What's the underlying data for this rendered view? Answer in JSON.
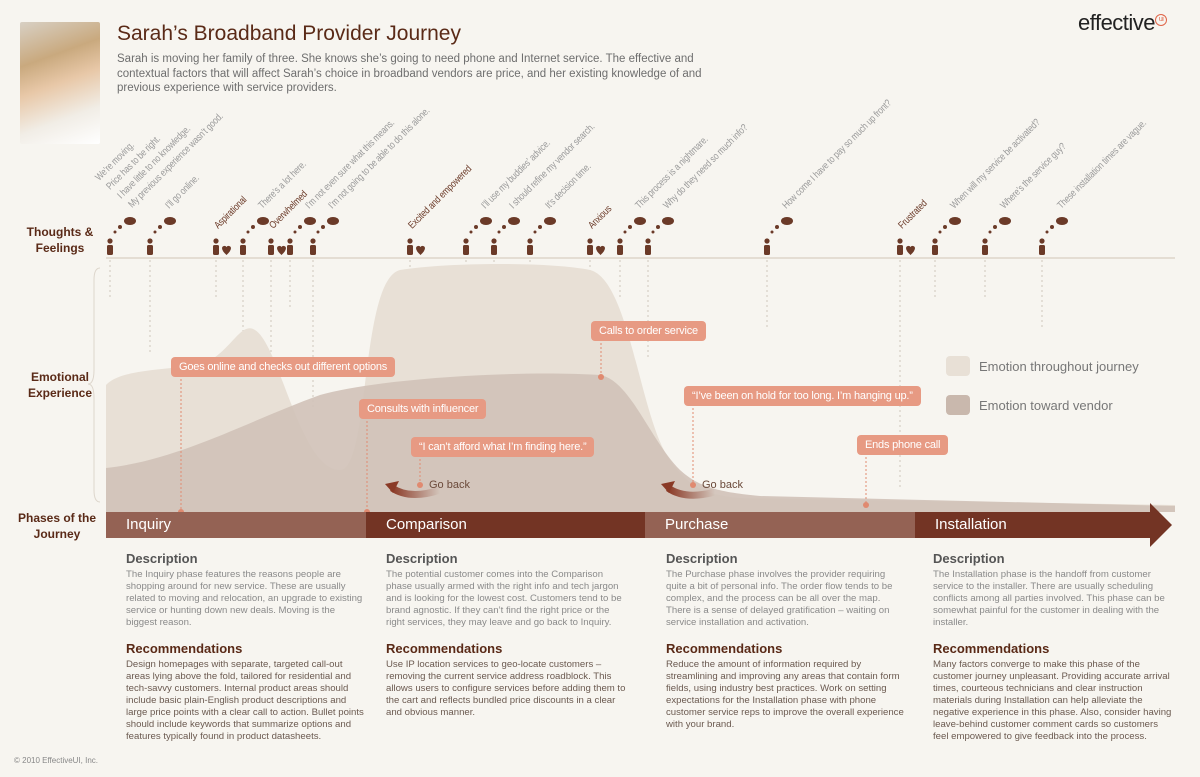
{
  "header": {
    "title": "Sarah’s Broadband Provider Journey",
    "intro": "Sarah is moving her family of three. She knows she’s going to need phone and Internet service. The effective and contextual factors that will affect Sarah’s choice in broadband vendors are price, and her existing knowledge of and previous experience with service providers.",
    "logo": "effective",
    "logo_mark": "ui"
  },
  "row_labels": {
    "thoughts": "Thoughts & Feelings",
    "emotion": "Emotional Experience",
    "phases": "Phases of the Journey"
  },
  "thoughts": [
    {
      "type": "thought",
      "lines": [
        "We’re moving.",
        "Price has to be right.",
        "I have little to no knowledge.",
        "My previous experience wasn’t good."
      ]
    },
    {
      "type": "thought",
      "lines": [
        "I’ll go online."
      ]
    },
    {
      "type": "feeling",
      "lines": [
        "Aspirational"
      ]
    },
    {
      "type": "thought",
      "lines": [
        "There’s a lot here."
      ]
    },
    {
      "type": "feeling",
      "lines": [
        "Overwhelmed"
      ]
    },
    {
      "type": "thought",
      "lines": [
        "I’m not even sure what this means."
      ]
    },
    {
      "type": "thought",
      "lines": [
        "I’m not going to be able to do this alone."
      ]
    },
    {
      "type": "feeling",
      "lines": [
        "Excited and empowered"
      ]
    },
    {
      "type": "thought",
      "lines": [
        "I’ll use my buddies’ advice."
      ]
    },
    {
      "type": "thought",
      "lines": [
        "I should refine my vendor search."
      ]
    },
    {
      "type": "thought",
      "lines": [
        "It’s decision time."
      ]
    },
    {
      "type": "feeling",
      "lines": [
        "Anxious"
      ]
    },
    {
      "type": "thought",
      "lines": [
        "This process is a nightmare."
      ]
    },
    {
      "type": "thought",
      "lines": [
        "Why do they need so much info?"
      ]
    },
    {
      "type": "thought",
      "lines": [
        "How come I have to pay so much up front?"
      ]
    },
    {
      "type": "feeling",
      "lines": [
        "Frustrated"
      ]
    },
    {
      "type": "thought",
      "lines": [
        "When will my service be activated?"
      ]
    },
    {
      "type": "thought",
      "lines": [
        "Where’s the service guy?"
      ]
    },
    {
      "type": "thought",
      "lines": [
        "These installation times are vague."
      ]
    }
  ],
  "callouts": [
    "Goes online and checks out different options",
    "Consults with influencer",
    "“I can’t afford what I’m finding here.”",
    "Calls to order service",
    "“I’ve been on hold for too long. I’m hanging up.”",
    "Ends phone call"
  ],
  "go_back": "Go back",
  "legend": [
    {
      "label": "Emotion throughout journey",
      "color": "#e8e0d6"
    },
    {
      "label": "Emotion toward vendor",
      "color": "#c9b8ad"
    }
  ],
  "colors": {
    "accent": "#e79a83",
    "phase_light": "#946254",
    "phase_dark": "#733424",
    "title": "#5a2a17"
  },
  "phases": [
    {
      "name": "Inquiry",
      "desc_title": "Description",
      "desc": "The Inquiry phase features the reasons people are shopping around for new service. These are usually related to moving and relocation, an upgrade to existing service or hunting down new deals. Moving is the biggest reason.",
      "rec_title": "Recommendations",
      "rec": "Design homepages with separate, targeted call-out areas lying above the fold, tailored for residential and tech-savvy customers. Internal product areas should include basic plain-English product descriptions and large price points with a clear call to action. Bullet points should include keywords that summarize options and features typically found in product datasheets."
    },
    {
      "name": "Comparison",
      "desc_title": "Description",
      "desc": "The potential customer comes into the Comparison phase usually armed with the right info and tech jargon and is looking for the lowest cost. Customers tend to be brand agnostic. If they can’t find the right price or the right services, they may leave and go back to Inquiry.",
      "rec_title": "Recommendations",
      "rec": "Use IP location services to geo-locate customers – removing the current service address roadblock. This allows users to configure services before adding them to the cart and reflects bundled price discounts in a clear and obvious manner."
    },
    {
      "name": "Purchase",
      "desc_title": "Description",
      "desc": "The Purchase phase involves the provider requiring quite a bit of personal info. The order flow tends to be complex, and the process can be all over the map. There is a sense of delayed gratification – waiting on service installation and activation.",
      "rec_title": "Recommendations",
      "rec": "Reduce the amount of information required by streamlining and improving any areas that contain form fields, using industry best practices. Work on setting expectations for the Installation phase with phone customer service reps to improve the overall experience with your brand."
    },
    {
      "name": "Installation",
      "desc_title": "Description",
      "desc": "The Installation phase is the handoff from customer service to the installer. There are usually scheduling conflicts among all parties involved. This phase can be somewhat painful for the customer in dealing with the installer.",
      "rec_title": "Recommendations",
      "rec": "Many factors converge to make this phase of the customer journey unpleasant. Providing accurate arrival times, courteous technicians and clear instruction materials during Installation can help alleviate the negative experience in this phase. Also, consider having leave-behind customer comment cards so customers feel empowered to give feedback into the process."
    }
  ],
  "copyright": "© 2010 EffectiveUI, Inc."
}
